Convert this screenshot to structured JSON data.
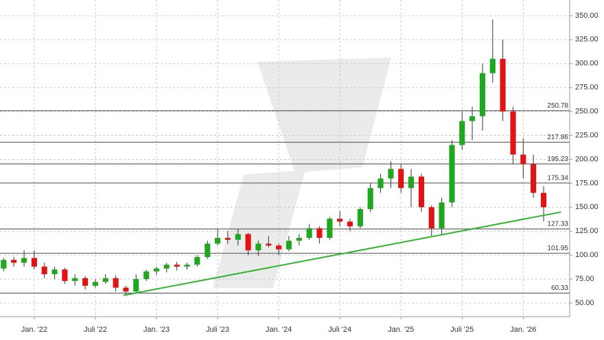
{
  "chart_data": {
    "type": "candlestick",
    "x": [
      2021.75,
      2021.833,
      2021.917,
      2022,
      2022.083,
      2022.167,
      2022.25,
      2022.333,
      2022.417,
      2022.5,
      2022.583,
      2022.667,
      2022.75,
      2022.833,
      2022.917,
      2023,
      2023.083,
      2023.167,
      2023.25,
      2023.333,
      2023.417,
      2023.5,
      2023.583,
      2023.667,
      2023.75,
      2023.833,
      2023.917,
      2024,
      2024.083,
      2024.167,
      2024.25,
      2024.333,
      2024.417,
      2024.5,
      2024.583,
      2024.667,
      2024.75,
      2024.833,
      2024.917,
      2025,
      2025.083,
      2025.167,
      2025.25,
      2025.333,
      2025.417,
      2025.5,
      2025.583,
      2025.667,
      2025.75,
      2025.833,
      2025.917,
      2026,
      2026.083,
      2026.167
    ],
    "open": [
      86,
      95,
      92,
      97,
      88,
      80,
      85,
      73,
      76,
      68,
      72,
      76,
      66,
      62,
      75,
      83,
      86,
      90,
      88,
      90,
      98,
      112,
      118,
      116,
      122,
      105,
      112,
      110,
      106,
      115,
      118,
      128,
      118,
      138,
      135,
      130,
      148,
      170,
      180,
      190,
      170,
      182,
      150,
      128,
      155,
      215,
      240,
      245,
      290,
      305,
      250,
      205,
      195,
      165
    ],
    "high": [
      97,
      98,
      105,
      105,
      92,
      88,
      87,
      80,
      78,
      75,
      80,
      79,
      68,
      80,
      85,
      88,
      92,
      93,
      92,
      100,
      115,
      127,
      125,
      127,
      123,
      115,
      120,
      112,
      120,
      122,
      132,
      130,
      140,
      146,
      138,
      150,
      175,
      185,
      198,
      195,
      190,
      185,
      152,
      160,
      220,
      250,
      255,
      300,
      346,
      325,
      255,
      222,
      205,
      172
    ],
    "low": [
      83,
      88,
      88,
      85,
      76,
      75,
      70,
      68,
      64,
      66,
      70,
      62,
      58,
      60,
      73,
      79,
      82,
      84,
      85,
      88,
      96,
      110,
      112,
      110,
      100,
      99,
      108,
      100,
      104,
      110,
      116,
      112,
      116,
      130,
      125,
      128,
      145,
      165,
      170,
      165,
      150,
      145,
      120,
      122,
      150,
      210,
      220,
      230,
      280,
      240,
      195,
      180,
      160,
      135
    ],
    "close": [
      95,
      92,
      97,
      88,
      80,
      85,
      73,
      76,
      68,
      72,
      76,
      66,
      62,
      75,
      83,
      86,
      90,
      88,
      90,
      98,
      112,
      118,
      116,
      122,
      105,
      112,
      110,
      106,
      115,
      118,
      128,
      118,
      138,
      135,
      130,
      148,
      170,
      180,
      190,
      170,
      182,
      150,
      128,
      155,
      215,
      240,
      245,
      290,
      305,
      250,
      205,
      195,
      165,
      150
    ],
    "up_color": "#1fa81f",
    "down_color": "#e01414",
    "xlim": [
      2021.72,
      2026.38
    ],
    "xticks": [
      {
        "value": 2022,
        "label": "Jan. '22"
      },
      {
        "value": 2022.5,
        "label": "Juli '22"
      },
      {
        "value": 2023,
        "label": "Jan. '23"
      },
      {
        "value": 2023.5,
        "label": "Juli '23"
      },
      {
        "value": 2024,
        "label": "Jan. '24"
      },
      {
        "value": 2024.5,
        "label": "Juli '24"
      },
      {
        "value": 2025,
        "label": "Jan. '25"
      },
      {
        "value": 2025.5,
        "label": "Juli '25"
      },
      {
        "value": 2026,
        "label": "Jan. '26"
      }
    ],
    "ylim": [
      35.7,
      366.4
    ],
    "yticks": [
      {
        "value": 50,
        "label": "50.00"
      },
      {
        "value": 75,
        "label": "75.00"
      },
      {
        "value": 100,
        "label": "100.00"
      },
      {
        "value": 125,
        "label": "125.00"
      },
      {
        "value": 150,
        "label": "150.00"
      },
      {
        "value": 175,
        "label": "175.00"
      },
      {
        "value": 200,
        "label": "200.00"
      },
      {
        "value": 225,
        "label": "225.00"
      },
      {
        "value": 250,
        "label": "250.00"
      },
      {
        "value": 275,
        "label": "275.00"
      },
      {
        "value": 300,
        "label": "300.00"
      },
      {
        "value": 325,
        "label": "325.00"
      },
      {
        "value": 350,
        "label": "350.00"
      }
    ],
    "grid": true,
    "levels": [
      250.78,
      217.86,
      195.23,
      175.34,
      127.33,
      101.95,
      60.33
    ],
    "trendline": {
      "x": [
        2022.73,
        2026.31
      ],
      "values": [
        58,
        145
      ],
      "color": "#2db52d"
    }
  }
}
